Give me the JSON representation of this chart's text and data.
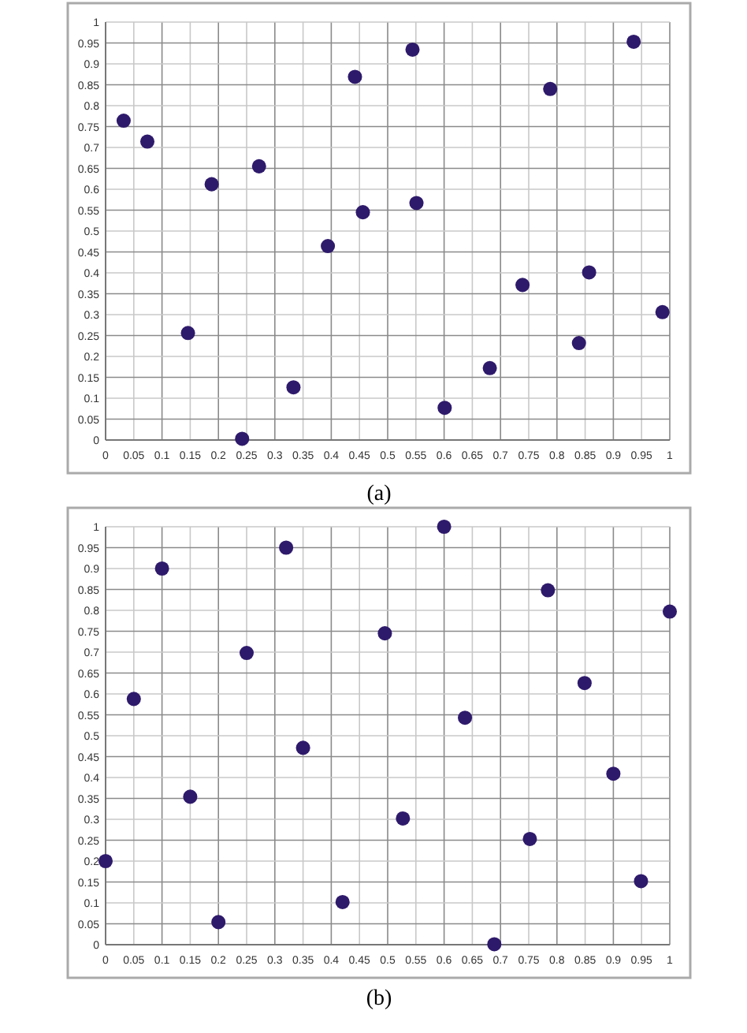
{
  "chart_data": [
    {
      "type": "scatter",
      "annotations": [
        "(a)"
      ],
      "marker": "circle",
      "grid": true,
      "xlim": [
        0,
        1
      ],
      "ylim": [
        0,
        1
      ],
      "xticks": [
        0,
        0.05,
        0.1,
        0.15,
        0.2,
        0.25,
        0.3,
        0.35,
        0.4,
        0.45,
        0.5,
        0.55,
        0.6,
        0.65,
        0.7,
        0.75,
        0.8,
        0.85,
        0.9,
        0.95,
        1
      ],
      "yticks": [
        0,
        0.05,
        0.1,
        0.15,
        0.2,
        0.25,
        0.3,
        0.35,
        0.4,
        0.45,
        0.5,
        0.55,
        0.6,
        0.65,
        0.7,
        0.75,
        0.8,
        0.85,
        0.9,
        0.95,
        1
      ],
      "series": [
        {
          "color": "#2e1a6b",
          "x": [
            0.032,
            0.074,
            0.188,
            0.272,
            0.146,
            0.242,
            0.333,
            0.394,
            0.442,
            0.456,
            0.544,
            0.551,
            0.788,
            0.936,
            0.857,
            0.739,
            0.987,
            0.839,
            0.681,
            0.601
          ],
          "values": [
            0.764,
            0.714,
            0.612,
            0.655,
            0.256,
            0.003,
            0.126,
            0.464,
            0.869,
            0.545,
            0.934,
            0.567,
            0.84,
            0.953,
            0.401,
            0.371,
            0.306,
            0.232,
            0.172,
            0.077
          ]
        }
      ]
    },
    {
      "type": "scatter",
      "annotations": [
        "(b)"
      ],
      "marker": "circle",
      "grid": true,
      "xlim": [
        0,
        1
      ],
      "ylim": [
        0,
        1
      ],
      "xticks": [
        0,
        0.05,
        0.1,
        0.15,
        0.2,
        0.25,
        0.3,
        0.35,
        0.4,
        0.45,
        0.5,
        0.55,
        0.6,
        0.65,
        0.7,
        0.75,
        0.8,
        0.85,
        0.9,
        0.95,
        1
      ],
      "yticks": [
        0,
        0.05,
        0.1,
        0.15,
        0.2,
        0.25,
        0.3,
        0.35,
        0.4,
        0.45,
        0.5,
        0.55,
        0.6,
        0.65,
        0.7,
        0.75,
        0.8,
        0.85,
        0.9,
        0.95,
        1
      ],
      "series": [
        {
          "color": "#2e1a6b",
          "x": [
            0,
            0.05,
            0.1,
            0.15,
            0.2,
            0.25,
            0.32,
            0.35,
            0.42,
            0.495,
            0.527,
            0.6,
            0.784,
            1,
            0.637,
            0.849,
            0.9,
            0.752,
            0.949,
            0.689
          ],
          "values": [
            0.2,
            0.588,
            0.9,
            0.354,
            0.054,
            0.698,
            0.95,
            0.471,
            0.102,
            0.745,
            0.302,
            1,
            0.848,
            0.797,
            0.543,
            0.626,
            0.409,
            0.253,
            0.152,
            0.001
          ]
        }
      ]
    }
  ]
}
